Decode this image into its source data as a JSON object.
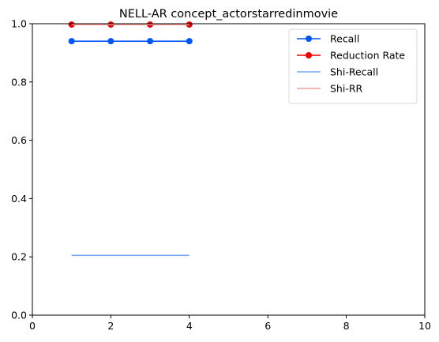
{
  "chart_data": {
    "type": "line",
    "title": "NELL-AR concept_actorstarredinmovie",
    "xlabel": "",
    "ylabel": "",
    "xlim": [
      0,
      10
    ],
    "ylim": [
      0,
      1.0
    ],
    "xticks": [
      0,
      2,
      4,
      6,
      8,
      10
    ],
    "yticks": [
      0.0,
      0.2,
      0.4,
      0.6,
      0.8,
      1.0
    ],
    "xtick_labels": [
      "0",
      "2",
      "4",
      "6",
      "8",
      "10"
    ],
    "ytick_labels": [
      "0.0",
      "0.2",
      "0.4",
      "0.6",
      "0.8",
      "1.0"
    ],
    "grid": false,
    "legend_position": "top-right",
    "series": [
      {
        "name": "Recall",
        "x": [
          1,
          2,
          3,
          4
        ],
        "y": [
          0.94,
          0.94,
          0.94,
          0.94
        ],
        "color": "#0055ff",
        "markers": true
      },
      {
        "name": "Reduction Rate",
        "x": [
          1,
          2,
          3,
          4
        ],
        "y": [
          0.997,
          0.997,
          0.997,
          0.997
        ],
        "color": "#ee0000",
        "markers": true
      },
      {
        "name": "Shi-Recall",
        "x": [
          1,
          4
        ],
        "y": [
          0.205,
          0.205
        ],
        "color": "#7aaaee",
        "markers": false
      },
      {
        "name": "Shi-RR",
        "x": [
          1,
          4
        ],
        "y": [
          0.997,
          0.997
        ],
        "color": "#f4a098",
        "markers": false
      }
    ]
  }
}
